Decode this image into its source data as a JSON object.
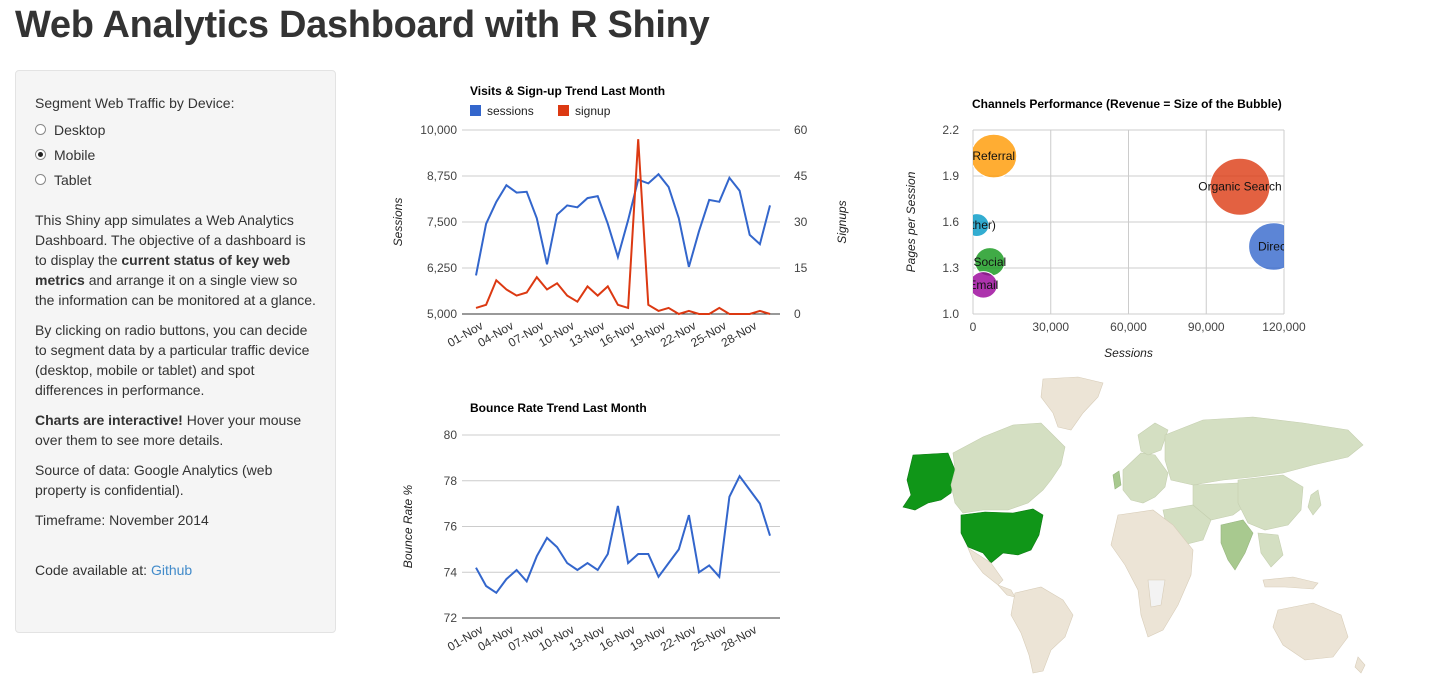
{
  "page": {
    "title": "Web Analytics Dashboard with R Shiny"
  },
  "sidebar": {
    "segment_label": "Segment Web Traffic by Device:",
    "options": [
      {
        "label": "Desktop",
        "selected": false
      },
      {
        "label": "Mobile",
        "selected": true
      },
      {
        "label": "Tablet",
        "selected": false
      }
    ],
    "desc1_a": "This Shiny app simulates a Web Analytics Dashboard. The objective of a dashboard is to display the ",
    "desc1_b": "current status of key web metrics",
    "desc1_c": " and arrange it on a single view so the information can be monitored at a glance.",
    "desc2": "By clicking on radio buttons, you can decide to segment data by a particular traffic device (desktop, mobile or tablet) and spot differences in performance.",
    "desc3_a": "Charts are interactive!",
    "desc3_b": " Hover your mouse over them to see more details.",
    "source": "Source of data: Google Analytics (web property is confidential).",
    "timeframe": "Timeframe: November 2014",
    "code_label": "Code available at: ",
    "code_link": "Github"
  },
  "chart_data": [
    {
      "type": "line",
      "title": "Visits & Sign-up Trend Last Month",
      "x": [
        "01-Nov",
        "02-Nov",
        "03-Nov",
        "04-Nov",
        "05-Nov",
        "06-Nov",
        "07-Nov",
        "08-Nov",
        "09-Nov",
        "10-Nov",
        "11-Nov",
        "12-Nov",
        "13-Nov",
        "14-Nov",
        "15-Nov",
        "16-Nov",
        "17-Nov",
        "18-Nov",
        "19-Nov",
        "20-Nov",
        "21-Nov",
        "22-Nov",
        "23-Nov",
        "24-Nov",
        "25-Nov",
        "26-Nov",
        "27-Nov",
        "28-Nov",
        "29-Nov",
        "30-Nov"
      ],
      "x_ticks": [
        "01-Nov",
        "04-Nov",
        "07-Nov",
        "10-Nov",
        "13-Nov",
        "16-Nov",
        "19-Nov",
        "22-Nov",
        "25-Nov",
        "28-Nov"
      ],
      "ylabel": "Sessions",
      "y2label": "Signups",
      "ylim": [
        5000,
        10000
      ],
      "y2lim": [
        0,
        60
      ],
      "yticks": [
        "10,000",
        "8,750",
        "7,500",
        "6,250",
        "5,000"
      ],
      "y2ticks": [
        "60",
        "45",
        "30",
        "15",
        "0"
      ],
      "series": [
        {
          "name": "sessions",
          "axis": "left",
          "color": "#3366cc",
          "values": [
            6050,
            7450,
            8050,
            8500,
            8300,
            8320,
            7600,
            6350,
            7700,
            7950,
            7900,
            8150,
            8200,
            7450,
            6550,
            7550,
            8650,
            8550,
            8800,
            8450,
            7600,
            6280,
            7250,
            8100,
            8050,
            8700,
            8350,
            7150,
            6900,
            7950
          ]
        },
        {
          "name": "signup",
          "axis": "right",
          "color": "#dc3912",
          "values": [
            2,
            3,
            11,
            8,
            6,
            7,
            12,
            8,
            10,
            6,
            4,
            9,
            6,
            9,
            3,
            2,
            57,
            3,
            1,
            2,
            0,
            1,
            0,
            0,
            2,
            0,
            0,
            0,
            1,
            0
          ]
        }
      ]
    },
    {
      "type": "scatter",
      "title": "Channels Performance (Revenue = Size of the Bubble)",
      "xlabel": "Sessions",
      "ylabel": "Pages per Session",
      "xlim": [
        0,
        120000
      ],
      "ylim": [
        1.0,
        2.2
      ],
      "xticks": [
        "0",
        "30,000",
        "60,000",
        "90,000",
        "120,000"
      ],
      "yticks": [
        "2.2",
        "1.9",
        "1.6",
        "1.3",
        "1.0"
      ],
      "points": [
        {
          "label": "Referral",
          "x": 8000,
          "y": 2.03,
          "color": "#ff9900"
        },
        {
          "label": "Organic Search",
          "x": 103000,
          "y": 1.83,
          "color": "#dc3912"
        },
        {
          "label": "Direct",
          "x": 116000,
          "y": 1.44,
          "color": "#3366cc"
        },
        {
          "label": "(Other)",
          "x": 1500,
          "y": 1.58,
          "color": "#0099c6"
        },
        {
          "label": "Social",
          "x": 6500,
          "y": 1.34,
          "color": "#109618"
        },
        {
          "label": "Email",
          "x": 4000,
          "y": 1.19,
          "color": "#990099"
        }
      ]
    },
    {
      "type": "line",
      "title": "Bounce Rate Trend Last Month",
      "ylabel": "Bounce Rate %",
      "ylim": [
        72,
        80
      ],
      "yticks": [
        "80",
        "78",
        "76",
        "74",
        "72"
      ],
      "x_ticks": [
        "01-Nov",
        "04-Nov",
        "07-Nov",
        "10-Nov",
        "13-Nov",
        "16-Nov",
        "19-Nov",
        "22-Nov",
        "25-Nov",
        "28-Nov"
      ],
      "series": [
        {
          "name": "bounce",
          "color": "#3366cc",
          "values": [
            74.2,
            73.4,
            73.1,
            73.7,
            74.1,
            73.6,
            74.7,
            75.5,
            75.1,
            74.4,
            74.1,
            74.4,
            74.1,
            74.8,
            76.9,
            74.4,
            74.8,
            74.8,
            73.8,
            74.4,
            75.0,
            76.5,
            74.0,
            74.3,
            73.8,
            77.3,
            78.2,
            77.6,
            77.0,
            75.6
          ]
        }
      ]
    }
  ],
  "map": {
    "colors": {
      "ocean": "#ffffff",
      "land": "#ece4d6",
      "low": "#d4dfc2",
      "mid": "#a8c98f",
      "high": "#109618"
    }
  }
}
